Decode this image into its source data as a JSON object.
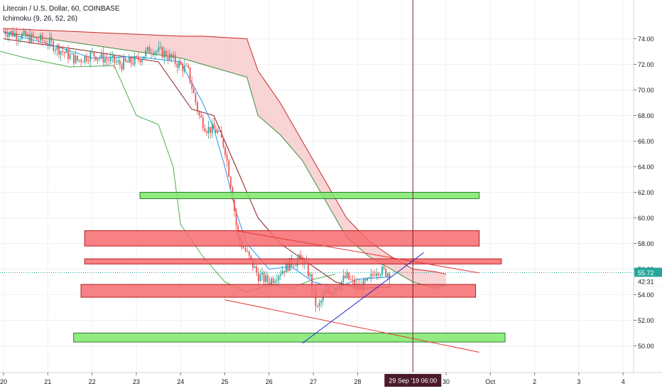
{
  "legend": {
    "symbol_line": "Litecoin / U.S. Dollar, 60, COINBASE",
    "indicator_line": "Ichimoku (9, 26, 52, 26)"
  },
  "colors": {
    "background": "#ffffff",
    "grid": "#eef1f6",
    "candle_up": "#26a69a",
    "candle_down": "#ef5350",
    "tenkan": "#2196f3",
    "kijun": "#8b1a1a",
    "chikou": "#4caf50",
    "span_a": "#388e3c",
    "span_b": "#c62828",
    "cloud_bear": "#f8c9c9",
    "zone_red": "#f66b6e",
    "zone_red_border": "#b71c1c",
    "zone_green": "#7ee86b",
    "zone_green_border": "#2e7d32",
    "trend_red": "#e53935",
    "trend_blue": "#1e22cf",
    "crosshair": "#7b1e2e",
    "price_label_bg": "#26a69a",
    "cursor_label_bg": "#4a1a2c"
  },
  "chart_data": {
    "type": "candlestick",
    "symbol": "Litecoin / U.S. Dollar",
    "interval": "60",
    "exchange": "COINBASE",
    "indicator": "Ichimoku (9, 26, 52, 26)",
    "ylim": [
      48,
      75
    ],
    "y_ticks": [
      "50.00",
      "52.00",
      "54.00",
      "56.00",
      "58.00",
      "60.00",
      "62.00",
      "64.00",
      "66.00",
      "68.00",
      "70.00",
      "72.00",
      "74.00"
    ],
    "x_ticks": [
      "20",
      "21",
      "22",
      "23",
      "24",
      "25",
      "26",
      "27",
      "28",
      "29 Sep '19  06:00",
      "30",
      "Oct",
      "2",
      "3",
      "4"
    ],
    "cursor_label": "29 Sep '19  06:00",
    "last_price": "55.72",
    "countdown": "42:31",
    "grid": true,
    "candle_path": [
      [
        "Sep 20 00:00",
        74.6
      ],
      [
        "Sep 20 08:00",
        74.3
      ],
      [
        "Sep 20 16:00",
        74.0
      ],
      [
        "Sep 21 00:00",
        73.8
      ],
      [
        "Sep 21 08:00",
        73.0
      ],
      [
        "Sep 21 16:00",
        72.3
      ],
      [
        "Sep 22 00:00",
        72.8
      ],
      [
        "Sep 22 08:00",
        72.4
      ],
      [
        "Sep 22 16:00",
        72.0
      ],
      [
        "Sep 23 00:00",
        72.3
      ],
      [
        "Sep 23 08:00",
        73.2
      ],
      [
        "Sep 23 16:00",
        72.8
      ],
      [
        "Sep 23 22:00",
        72.1
      ],
      [
        "Sep 24 04:00",
        71.5
      ],
      [
        "Sep 24 10:00",
        68.0
      ],
      [
        "Sep 24 14:00",
        67.0
      ],
      [
        "Sep 24 20:00",
        66.8
      ],
      [
        "Sep 25 00:00",
        65.5
      ],
      [
        "Sep 25 04:00",
        62.0
      ],
      [
        "Sep 25 07:00",
        58.5
      ],
      [
        "Sep 25 12:00",
        57.2
      ],
      [
        "Sep 25 18:00",
        55.5
      ],
      [
        "Sep 26 00:00",
        55.0
      ],
      [
        "Sep 26 06:00",
        55.8
      ],
      [
        "Sep 26 12:00",
        56.5
      ],
      [
        "Sep 26 18:00",
        56.8
      ],
      [
        "Sep 26 22:00",
        55.5
      ],
      [
        "Sep 27 02:00",
        52.8
      ],
      [
        "Sep 27 06:00",
        54.0
      ],
      [
        "Sep 27 12:00",
        54.6
      ],
      [
        "Sep 27 18:00",
        55.4
      ],
      [
        "Sep 28 00:00",
        54.5
      ],
      [
        "Sep 28 06:00",
        55.0
      ],
      [
        "Sep 28 10:00",
        56.0
      ],
      [
        "Sep 28 14:00",
        55.8
      ],
      [
        "Sep 28 18:00",
        55.72
      ]
    ],
    "tenkan": [
      [
        "Sep 20 00:00",
        74.5
      ],
      [
        "Sep 21 00:00",
        73.6
      ],
      [
        "Sep 22 00:00",
        72.5
      ],
      [
        "Sep 23 00:00",
        72.6
      ],
      [
        "Sep 24 00:00",
        72.2
      ],
      [
        "Sep 24 12:00",
        69.0
      ],
      [
        "Sep 24 18:00",
        67.0
      ],
      [
        "Sep 25 00:00",
        64.0
      ],
      [
        "Sep 25 06:00",
        60.5
      ],
      [
        "Sep 25 12:00",
        58.0
      ],
      [
        "Sep 26 00:00",
        56.0
      ],
      [
        "Sep 26 12:00",
        56.2
      ],
      [
        "Sep 27 00:00",
        55.0
      ],
      [
        "Sep 27 12:00",
        54.5
      ],
      [
        "Sep 28 00:00",
        55.2
      ],
      [
        "Sep 28 18:00",
        55.4
      ]
    ],
    "kijun": [
      [
        "Sep 20 00:00",
        74.0
      ],
      [
        "Sep 22 00:00",
        73.0
      ],
      [
        "Sep 23 12:00",
        72.2
      ],
      [
        "Sep 24 06:00",
        68.5
      ],
      [
        "Sep 24 18:00",
        68.0
      ],
      [
        "Sep 25 06:00",
        64.0
      ],
      [
        "Sep 25 18:00",
        60.0
      ],
      [
        "Sep 26 06:00",
        58.0
      ],
      [
        "Sep 26 18:00",
        56.8
      ],
      [
        "Sep 27 12:00",
        55.0
      ],
      [
        "Sep 28 00:00",
        54.5
      ],
      [
        "Sep 28 18:00",
        54.6
      ]
    ],
    "chikou": [
      [
        "Sep 19 12:00",
        73.4
      ],
      [
        "Sep 20 12:00",
        72.5
      ],
      [
        "Sep 21 12:00",
        71.8
      ],
      [
        "Sep 22 12:00",
        71.9
      ],
      [
        "Sep 23 00:00",
        68.0
      ],
      [
        "Sep 23 12:00",
        67.3
      ],
      [
        "Sep 23 20:00",
        64.0
      ],
      [
        "Sep 24 00:00",
        59.5
      ],
      [
        "Sep 24 12:00",
        57.0
      ],
      [
        "Sep 25 00:00",
        55.0
      ],
      [
        "Sep 25 12:00",
        54.2
      ],
      [
        "Sep 26 00:00",
        54.8
      ],
      [
        "Sep 26 12:00",
        54.5
      ],
      [
        "Sep 27 00:00",
        55.2
      ],
      [
        "Sep 27 12:00",
        55.6
      ]
    ],
    "span_a": [
      [
        "Sep 20 00:00",
        74.5
      ],
      [
        "Sep 22 00:00",
        73.5
      ],
      [
        "Sep 24 00:00",
        72.5
      ],
      [
        "Sep 24 12:00",
        72.0
      ],
      [
        "Sep 25 12:00",
        71.0
      ],
      [
        "Sep 25 18:00",
        68.0
      ],
      [
        "Sep 26 06:00",
        66.5
      ],
      [
        "Sep 26 18:00",
        64.5
      ],
      [
        "Sep 27 06:00",
        61.5
      ],
      [
        "Sep 27 18:00",
        58.5
      ],
      [
        "Sep 28 06:00",
        57.0
      ],
      [
        "Sep 28 18:00",
        56.0
      ],
      [
        "Sep 29 06:00",
        55.0
      ],
      [
        "Sep 29 18:00",
        54.5
      ],
      [
        "Sep 30 00:00",
        54.8
      ]
    ],
    "span_b": [
      [
        "Sep 20 00:00",
        74.8
      ],
      [
        "Sep 22 00:00",
        74.5
      ],
      [
        "Sep 24 00:00",
        74.2
      ],
      [
        "Sep 24 12:00",
        74.2
      ],
      [
        "Sep 25 12:00",
        74.0
      ],
      [
        "Sep 25 18:00",
        71.5
      ],
      [
        "Sep 26 06:00",
        69.0
      ],
      [
        "Sep 26 18:00",
        66.0
      ],
      [
        "Sep 27 06:00",
        63.0
      ],
      [
        "Sep 27 18:00",
        60.0
      ],
      [
        "Sep 28 06:00",
        58.2
      ],
      [
        "Sep 28 18:00",
        57.0
      ],
      [
        "Sep 29 06:00",
        56.0
      ],
      [
        "Sep 29 18:00",
        55.8
      ],
      [
        "Sep 30 00:00",
        55.6
      ]
    ],
    "zones": [
      {
        "color": "green",
        "from": "Sep 23 02:00",
        "to": "Sep 30 18:00",
        "low": 61.5,
        "high": 62.0
      },
      {
        "color": "red",
        "from": "Sep 21 20:00",
        "to": "Sep 30 18:00",
        "low": 57.8,
        "high": 59.0
      },
      {
        "color": "red",
        "from": "Sep 21 20:00",
        "to": "Oct 1 06:00",
        "low": 56.4,
        "high": 56.8
      },
      {
        "color": "red",
        "from": "Sep 21 18:00",
        "to": "Sep 30 16:00",
        "low": 53.8,
        "high": 54.8
      },
      {
        "color": "green",
        "from": "Sep 21 14:00",
        "to": "Oct 1 08:00",
        "low": 50.3,
        "high": 51.0
      }
    ],
    "trendlines": [
      {
        "color": "red",
        "points": [
          [
            "Sep 25 06:00",
            59.0
          ],
          [
            "Sep 30 18:00",
            55.7
          ]
        ]
      },
      {
        "color": "red",
        "points": [
          [
            "Sep 25 00:00",
            53.6
          ],
          [
            "Sep 30 18:00",
            49.5
          ]
        ]
      },
      {
        "color": "blue",
        "points": [
          [
            "Sep 26 18:00",
            50.2
          ],
          [
            "Sep 29 12:00",
            57.3
          ]
        ]
      }
    ]
  }
}
